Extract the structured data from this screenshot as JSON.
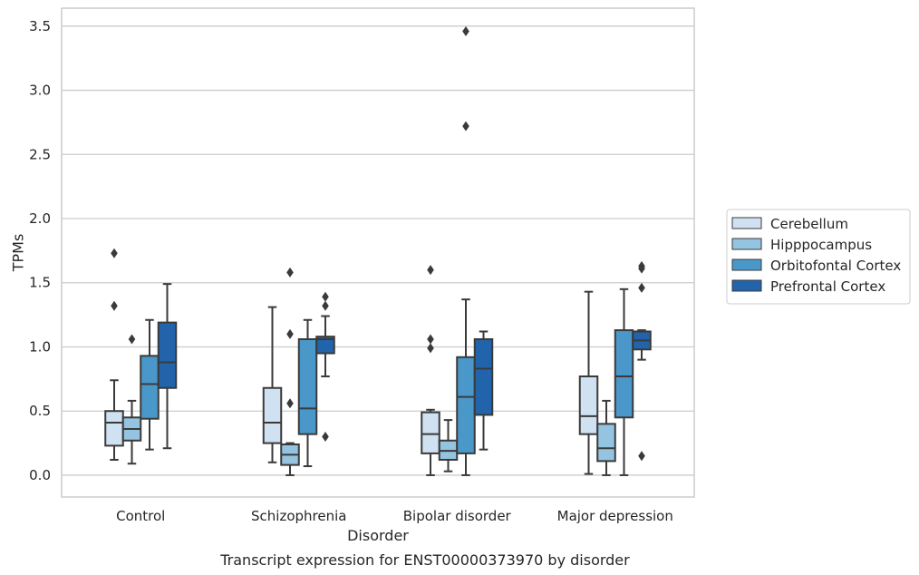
{
  "chart_data": {
    "type": "boxplot",
    "title": "",
    "caption": "Transcript expression for ENST00000373970 by disorder",
    "xlabel": "Disorder",
    "ylabel": "TPMs",
    "ylim": [
      -0.17,
      3.64
    ],
    "yticks": [
      0.0,
      0.5,
      1.0,
      1.5,
      2.0,
      2.5,
      3.0,
      3.5
    ],
    "ytick_labels": [
      "0.0",
      "0.5",
      "1.0",
      "1.5",
      "2.0",
      "2.5",
      "3.0",
      "3.5"
    ],
    "grid": "horizontal",
    "legend_placement": "right",
    "categories": [
      "Control",
      "Schizophrenia",
      "Bipolar disorder",
      "Major depression"
    ],
    "series": [
      {
        "name": "Cerebellum",
        "color": "#d0e1f2",
        "boxes": [
          {
            "whislo": 0.12,
            "q1": 0.23,
            "med": 0.41,
            "q3": 0.5,
            "whishi": 0.74,
            "fliers": [
              1.32,
              1.73
            ]
          },
          {
            "whislo": 0.1,
            "q1": 0.25,
            "med": 0.41,
            "q3": 0.68,
            "whishi": 1.31,
            "fliers": []
          },
          {
            "whislo": 0.0,
            "q1": 0.17,
            "med": 0.32,
            "q3": 0.49,
            "whishi": 0.51,
            "fliers": [
              0.99,
              1.06,
              1.6
            ]
          },
          {
            "whislo": 0.01,
            "q1": 0.32,
            "med": 0.46,
            "q3": 0.77,
            "whishi": 1.43,
            "fliers": []
          }
        ]
      },
      {
        "name": "Hipppocampus",
        "color": "#94c4df",
        "boxes": [
          {
            "whislo": 0.09,
            "q1": 0.27,
            "med": 0.36,
            "q3": 0.45,
            "whishi": 0.58,
            "fliers": [
              1.06
            ]
          },
          {
            "whislo": 0.0,
            "q1": 0.08,
            "med": 0.16,
            "q3": 0.24,
            "whishi": 0.25,
            "fliers": [
              0.56,
              1.1,
              1.58
            ]
          },
          {
            "whislo": 0.03,
            "q1": 0.12,
            "med": 0.19,
            "q3": 0.27,
            "whishi": 0.43,
            "fliers": []
          },
          {
            "whislo": 0.0,
            "q1": 0.11,
            "med": 0.21,
            "q3": 0.4,
            "whishi": 0.58,
            "fliers": []
          }
        ]
      },
      {
        "name": "Orbitofontal Cortex",
        "color": "#4a98c9",
        "boxes": [
          {
            "whislo": 0.2,
            "q1": 0.44,
            "med": 0.71,
            "q3": 0.93,
            "whishi": 1.21,
            "fliers": []
          },
          {
            "whislo": 0.07,
            "q1": 0.32,
            "med": 0.52,
            "q3": 1.06,
            "whishi": 1.21,
            "fliers": []
          },
          {
            "whislo": 0.0,
            "q1": 0.17,
            "med": 0.61,
            "q3": 0.92,
            "whishi": 1.37,
            "fliers": [
              2.72,
              3.46
            ]
          },
          {
            "whislo": 0.0,
            "q1": 0.45,
            "med": 0.77,
            "q3": 1.13,
            "whishi": 1.45,
            "fliers": []
          }
        ]
      },
      {
        "name": "Prefrontal Cortex",
        "color": "#2164ab",
        "boxes": [
          {
            "whislo": 0.21,
            "q1": 0.68,
            "med": 0.88,
            "q3": 1.19,
            "whishi": 1.49,
            "fliers": []
          },
          {
            "whislo": 0.77,
            "q1": 0.95,
            "med": 1.06,
            "q3": 1.08,
            "whishi": 1.24,
            "fliers": [
              0.3,
              1.32,
              1.39
            ]
          },
          {
            "whislo": 0.2,
            "q1": 0.47,
            "med": 0.83,
            "q3": 1.06,
            "whishi": 1.12,
            "fliers": []
          },
          {
            "whislo": 0.9,
            "q1": 0.98,
            "med": 1.05,
            "q3": 1.12,
            "whishi": 1.13,
            "fliers": [
              0.15,
              1.46,
              1.61,
              1.63
            ]
          }
        ]
      }
    ]
  }
}
